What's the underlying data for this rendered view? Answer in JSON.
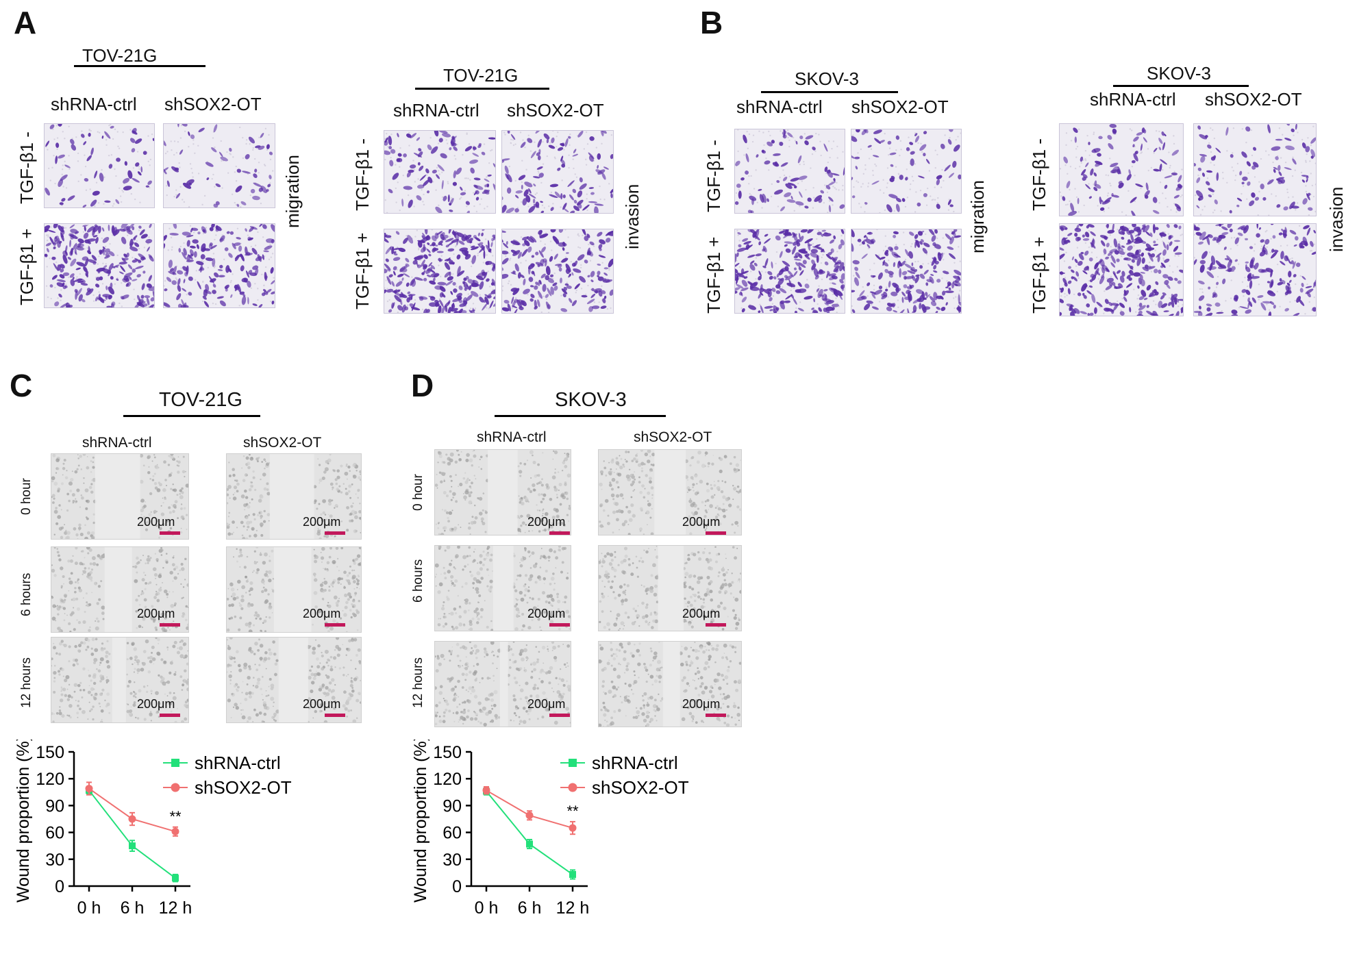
{
  "panels": {
    "A": {
      "letter": "A",
      "cell_line": "TOV-21G",
      "col1": "shRNA-ctrl",
      "col2": "shSOX2-OT",
      "row_minus": "TGF-β1 -",
      "row_plus": "TGF-β1 +",
      "migration": "migration",
      "invasion": "invasion"
    },
    "B": {
      "letter": "B",
      "cell_line": "SKOV-3",
      "col1": "shRNA-ctrl",
      "col2": "shSOX2-OT",
      "row_minus": "TGF-β1 -",
      "row_plus": "TGF-β1 +",
      "migration": "migration",
      "invasion": "invasion"
    },
    "C": {
      "letter": "C",
      "cell_line": "TOV-21G",
      "col1": "shRNA-ctrl",
      "col2": "shSOX2-OT",
      "rows": [
        "0 hour",
        "6 hours",
        "12 hours"
      ],
      "scale": "200μm"
    },
    "D": {
      "letter": "D",
      "cell_line": "SKOV-3",
      "col1": "shRNA-ctrl",
      "col2": "shSOX2-OT",
      "rows": [
        "0 hour",
        "6 hours",
        "12 hours"
      ],
      "scale": "200μm"
    }
  },
  "colors": {
    "ctrl": "#22e07a",
    "sox": "#f07070",
    "stain": "#5a2ea6",
    "scale": "#c2185b"
  },
  "chart_data": [
    {
      "type": "line",
      "ylabel": "Wound proportion (%)",
      "categories": [
        "0 h",
        "6 h",
        "12 h"
      ],
      "yticks": [
        0,
        30,
        60,
        90,
        120,
        150
      ],
      "ylim": [
        0,
        150
      ],
      "significance": "**",
      "legend_position": "top-right",
      "series": [
        {
          "name": "shRNA-ctrl",
          "values": [
            107,
            45,
            9
          ],
          "errors": [
            4,
            6,
            4
          ],
          "marker": "square",
          "color": "#22e07a"
        },
        {
          "name": "shSOX2-OT",
          "values": [
            109,
            75,
            61
          ],
          "errors": [
            7,
            7,
            5
          ],
          "marker": "circle",
          "color": "#f07070"
        }
      ]
    },
    {
      "type": "line",
      "ylabel": "Wound proportion (%)",
      "categories": [
        "0 h",
        "6 h",
        "12 h"
      ],
      "yticks": [
        0,
        30,
        60,
        90,
        120,
        150
      ],
      "ylim": [
        0,
        150
      ],
      "significance": "**",
      "legend_position": "top-right",
      "series": [
        {
          "name": "shRNA-ctrl",
          "values": [
            106,
            47,
            13
          ],
          "errors": [
            4,
            5,
            5
          ],
          "marker": "square",
          "color": "#22e07a"
        },
        {
          "name": "shSOX2-OT",
          "values": [
            107,
            79,
            65
          ],
          "errors": [
            4,
            5,
            7
          ],
          "marker": "circle",
          "color": "#f07070"
        }
      ]
    }
  ]
}
